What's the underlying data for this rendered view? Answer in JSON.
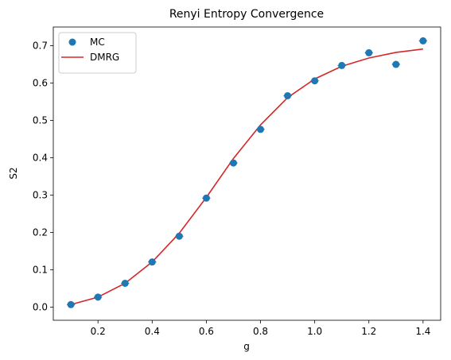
{
  "chart_data": {
    "type": "scatter",
    "title": "Renyi Entropy Convergence",
    "xlabel": "g",
    "ylabel": "S2",
    "xlim": [
      0.035,
      1.465
    ],
    "ylim": [
      -0.035,
      0.75
    ],
    "xticks": [
      0.2,
      0.4,
      0.6,
      0.8,
      1.0,
      1.2,
      1.4
    ],
    "xtick_labels": [
      "0.2",
      "0.4",
      "0.6",
      "0.8",
      "1.0",
      "1.2",
      "1.4"
    ],
    "yticks": [
      0.0,
      0.1,
      0.2,
      0.3,
      0.4,
      0.5,
      0.6,
      0.7
    ],
    "ytick_labels": [
      "0.0",
      "0.1",
      "0.2",
      "0.3",
      "0.4",
      "0.5",
      "0.6",
      "0.7"
    ],
    "grid": false,
    "legend_position": "top-left",
    "series": [
      {
        "name": "MC",
        "kind": "scatter",
        "color": "#1f77b4",
        "x": [
          0.1,
          0.2,
          0.3,
          0.4,
          0.5,
          0.6,
          0.7,
          0.8,
          0.9,
          1.0,
          1.1,
          1.2,
          1.3,
          1.4
        ],
        "y": [
          0.007,
          0.027,
          0.064,
          0.121,
          0.19,
          0.292,
          0.386,
          0.476,
          0.566,
          0.606,
          0.647,
          0.681,
          0.65,
          0.713
        ],
        "xerr": 0.015
      },
      {
        "name": "DMRG",
        "kind": "line",
        "color": "#d62728",
        "x": [
          0.1,
          0.2,
          0.3,
          0.4,
          0.5,
          0.6,
          0.7,
          0.8,
          0.9,
          1.0,
          1.1,
          1.2,
          1.3,
          1.4
        ],
        "y": [
          0.007,
          0.027,
          0.064,
          0.121,
          0.198,
          0.294,
          0.398,
          0.488,
          0.561,
          0.611,
          0.645,
          0.667,
          0.682,
          0.691
        ]
      }
    ]
  }
}
